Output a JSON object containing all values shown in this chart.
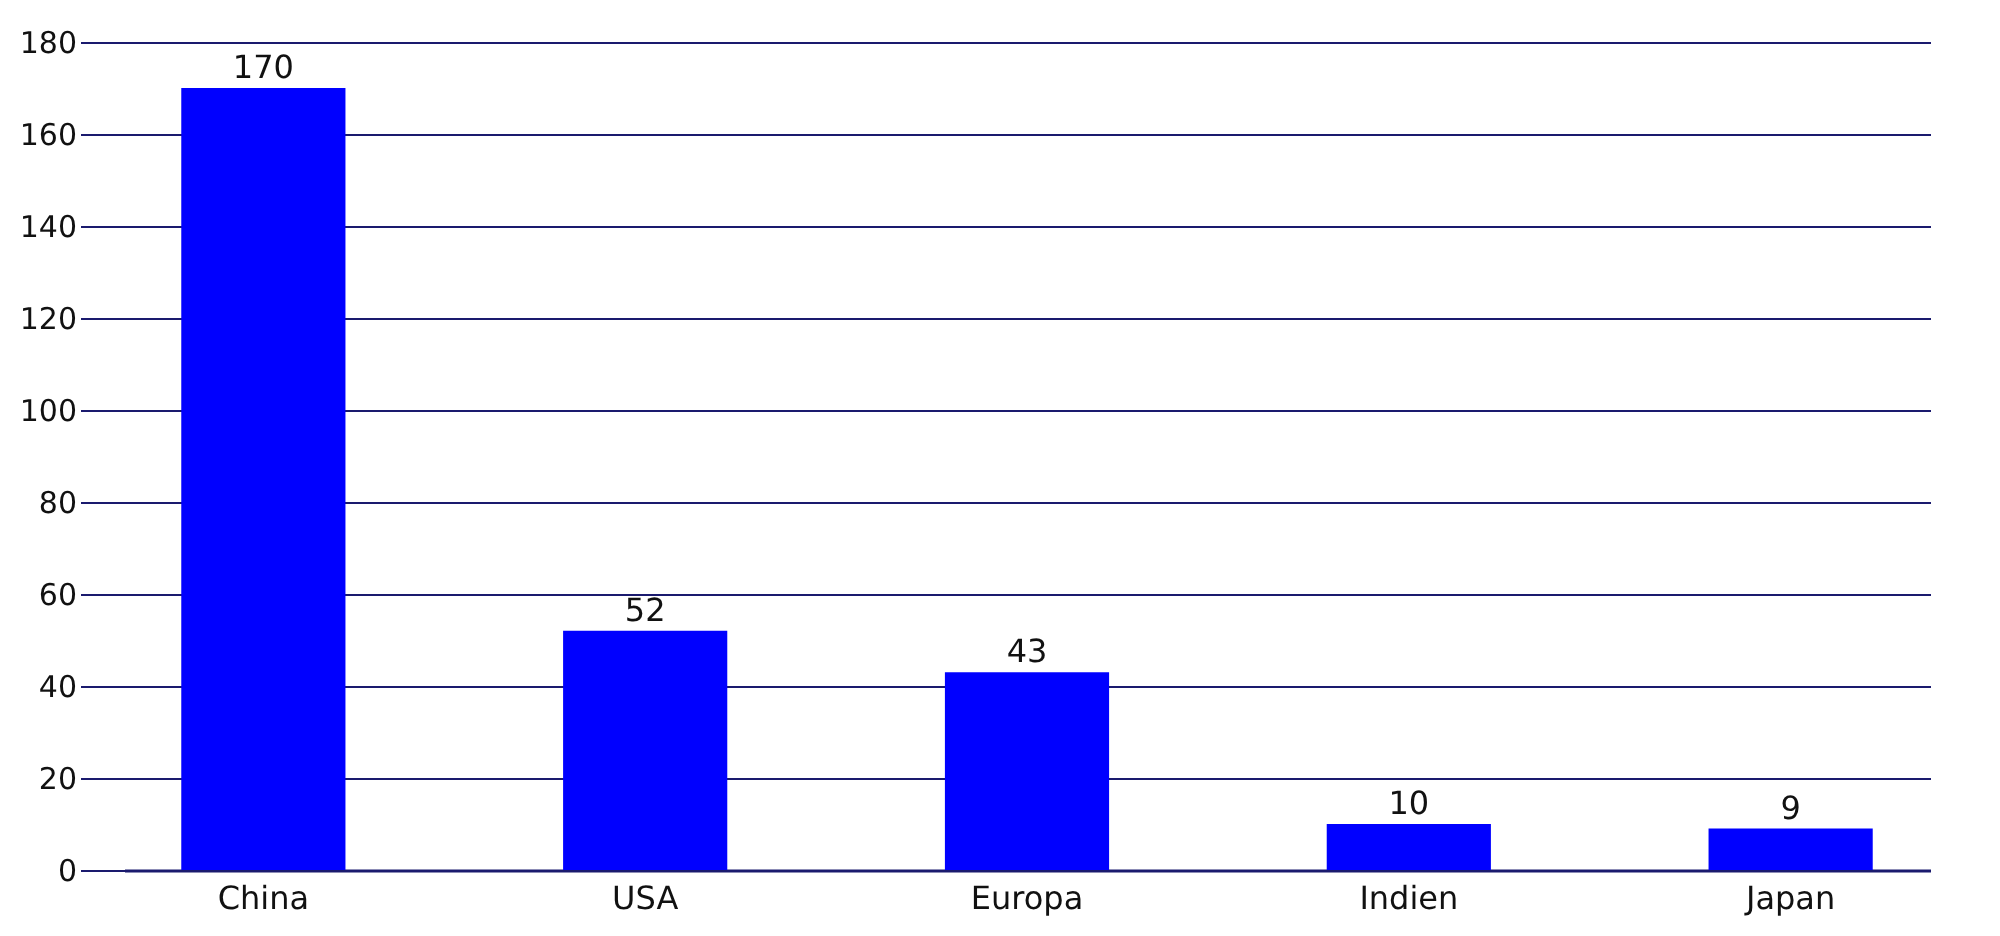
{
  "chart_data": {
    "type": "bar",
    "categories": [
      "China",
      "USA",
      "Europa",
      "Indien",
      "Japan"
    ],
    "values": [
      170,
      52,
      43,
      10,
      9
    ],
    "color": "#0000ff",
    "ylim": [
      0,
      180
    ],
    "yticks": [
      0,
      20,
      40,
      60,
      80,
      100,
      120,
      140,
      160,
      180
    ],
    "grid": "y",
    "data_labels": true
  }
}
